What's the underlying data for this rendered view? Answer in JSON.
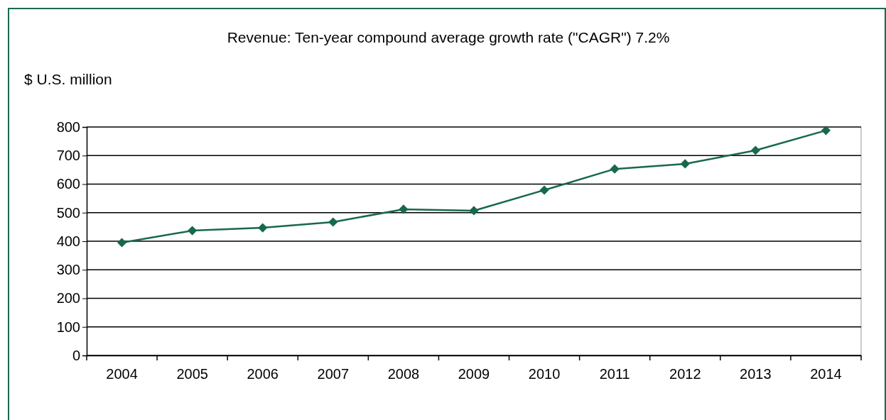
{
  "chart_data": {
    "type": "line",
    "title": "Revenue: Ten-year compound average growth rate (\"CAGR\") 7.2%",
    "ylabel": "$ U.S. million",
    "categories": [
      "2004",
      "2005",
      "2006",
      "2007",
      "2008",
      "2009",
      "2010",
      "2011",
      "2012",
      "2013",
      "2014"
    ],
    "series": [
      {
        "color": "#17694a",
        "values": [
          395,
          437,
          447,
          467,
          512,
          507,
          579,
          653,
          671,
          718,
          788
        ]
      }
    ],
    "ylim": [
      0,
      800
    ],
    "yticks": [
      0,
      100,
      200,
      300,
      400,
      500,
      600,
      700,
      800
    ],
    "grid": "y",
    "marker": "diamond",
    "line_style": "solid"
  }
}
